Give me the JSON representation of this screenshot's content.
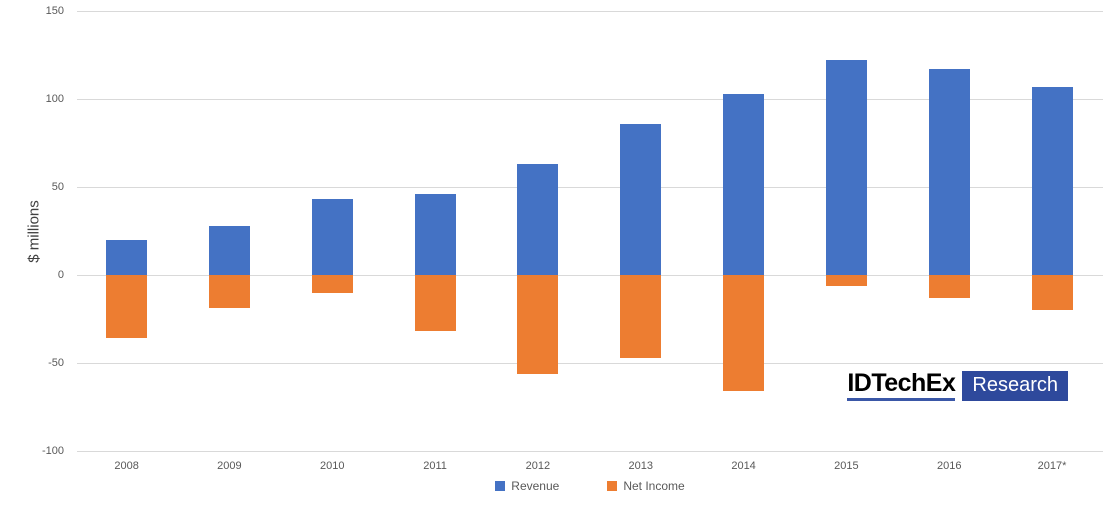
{
  "chart_data": {
    "type": "bar",
    "categories": [
      "2008",
      "2009",
      "2010",
      "2011",
      "2012",
      "2013",
      "2014",
      "2015",
      "2016",
      "2017*"
    ],
    "series": [
      {
        "name": "Revenue",
        "color": "#4472C4",
        "values": [
          20,
          28,
          43,
          46,
          63,
          86,
          103,
          122,
          117,
          107
        ]
      },
      {
        "name": "Net Income",
        "color": "#ED7D31",
        "values": [
          -36,
          -19,
          -10,
          -32,
          -56,
          -47,
          -66,
          -6,
          -13,
          -20
        ]
      }
    ],
    "title": "",
    "xlabel": "",
    "ylabel": "$ millions",
    "ylim": [
      -100,
      150
    ],
    "yticks": [
      150,
      100,
      50,
      0,
      -50,
      -100
    ],
    "grid": true,
    "gridline_color": "#d9d9d9",
    "legend_position": "bottom"
  },
  "logo": {
    "brand": "IDTechEx",
    "suffix": "Research",
    "badge_color": "#2e499c"
  }
}
